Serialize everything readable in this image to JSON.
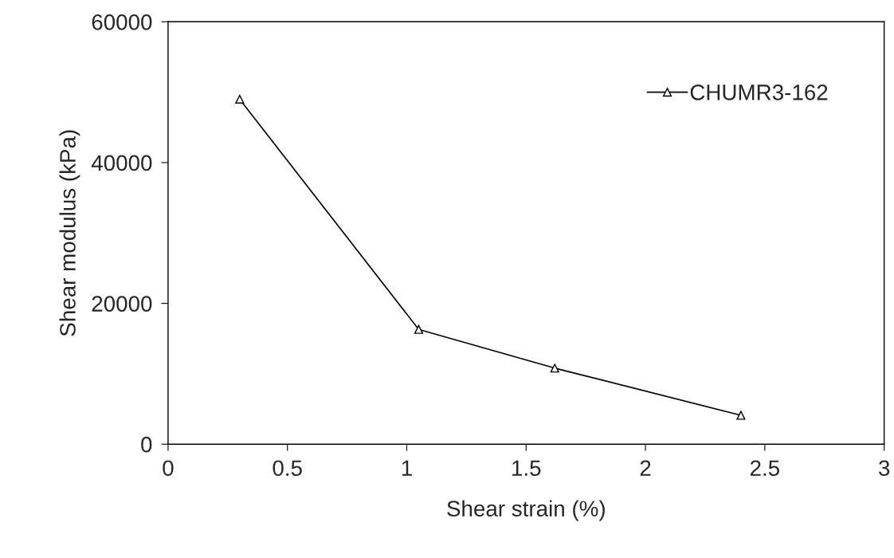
{
  "chart_data": {
    "type": "line",
    "xlabel": "Shear strain (%)",
    "ylabel": "Shear modulus (kPa)",
    "x": [
      0.3,
      1.05,
      1.62,
      2.4
    ],
    "series": [
      {
        "name": "CHUMR3-162",
        "color": "#000000",
        "values": [
          49000,
          16300,
          10800,
          4100
        ]
      }
    ],
    "xlim": [
      0,
      3
    ],
    "xticks": [
      0,
      0.5,
      1,
      1.5,
      2,
      2.5,
      3
    ],
    "ylim": [
      0,
      60000
    ],
    "yticks": [
      0,
      20000,
      40000,
      60000
    ],
    "grid": false,
    "legend": "top right",
    "marker": "triangle",
    "line_style": "solid"
  }
}
